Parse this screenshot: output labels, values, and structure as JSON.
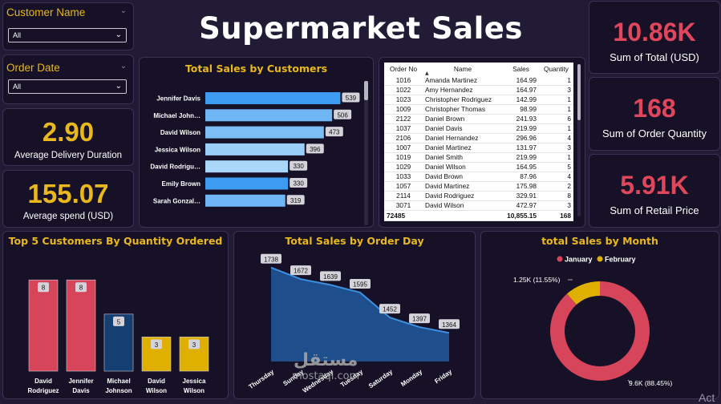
{
  "title": "Supermarket Sales",
  "slicers": {
    "customer": {
      "label": "Customer Name",
      "value": "All"
    },
    "order_date": {
      "label": "Order Date",
      "value": "All"
    }
  },
  "kpis": {
    "delivery": {
      "value": "2.90",
      "label": "Average Delivery Duration"
    },
    "spend": {
      "value": "155.07",
      "label": "Average spend (USD)"
    },
    "total": {
      "value": "10.86K",
      "label": "Sum of Total (USD)"
    },
    "quantity": {
      "value": "168",
      "label": "Sum of Order Quantity"
    },
    "retail": {
      "value": "5.91K",
      "label": "Sum of Retail Price"
    }
  },
  "table": {
    "headers": [
      "Order No",
      "Name",
      "Sales",
      "Quantity"
    ],
    "rows": [
      [
        "1016",
        "Amanda Martinez",
        "164.99",
        "1"
      ],
      [
        "1022",
        "Amy Hernandez",
        "164.97",
        "3"
      ],
      [
        "1023",
        "Christopher Rodriguez",
        "142.99",
        "1"
      ],
      [
        "1009",
        "Christopher Thomas",
        "98.99",
        "1"
      ],
      [
        "2122",
        "Daniel Brown",
        "241.93",
        "6"
      ],
      [
        "1037",
        "Daniel Davis",
        "219.99",
        "1"
      ],
      [
        "2106",
        "Daniel Hernandez",
        "296.96",
        "4"
      ],
      [
        "1007",
        "Daniel Martinez",
        "131.97",
        "3"
      ],
      [
        "1019",
        "Daniel Smith",
        "219.99",
        "1"
      ],
      [
        "1029",
        "Daniel Wilson",
        "164.95",
        "5"
      ],
      [
        "1033",
        "David Brown",
        "87.96",
        "4"
      ],
      [
        "1057",
        "David Martinez",
        "175.98",
        "2"
      ],
      [
        "2114",
        "David Rodriguez",
        "329.91",
        "8"
      ],
      [
        "3071",
        "David Wilson",
        "472.97",
        "3"
      ]
    ],
    "total": [
      "72485",
      "",
      "10,855.15",
      "168"
    ]
  },
  "watermark": {
    "arabic": "مستقل",
    "latin": "mostaql.com"
  },
  "overlay_text": "Act",
  "chart_data": [
    {
      "type": "bar",
      "orientation": "horizontal",
      "title": "Total Sales by Customers",
      "categories": [
        "Jennifer Davis",
        "Michael John…",
        "David Wilson",
        "Jessica Wilson",
        "David Rodrigu…",
        "Emily Brown",
        "Sarah Gonzal…"
      ],
      "values": [
        539,
        506,
        473,
        396,
        330,
        330,
        319
      ],
      "colors": [
        "#3d9bf0",
        "#6fb6f5",
        "#7cbef6",
        "#9acff9",
        "#a8d7fa",
        "#3d9bf0",
        "#6fb6f5"
      ],
      "xlim": [
        0,
        640
      ]
    },
    {
      "type": "bar",
      "title": "Top 5 Customers By Quantity Ordered",
      "categories": [
        "David Rodriguez",
        "Jennifer Davis",
        "Michael Johnson",
        "David Wilson",
        "Jessica Wilson"
      ],
      "category_lines": [
        [
          "David",
          "Rodriguez"
        ],
        [
          "Jennifer",
          "Davis"
        ],
        [
          "Michael",
          "Johnson"
        ],
        [
          "David",
          "Wilson"
        ],
        [
          "Jessica",
          "Wilson"
        ]
      ],
      "values": [
        8,
        8,
        5,
        3,
        3
      ],
      "colors": [
        "#d7455b",
        "#d7455b",
        "#153e73",
        "#e0b000",
        "#e0b000"
      ],
      "ylim": [
        0,
        9
      ]
    },
    {
      "type": "area",
      "title": "Total Sales by Order Day",
      "categories": [
        "Thursday",
        "Sunday",
        "Wednesday",
        "Tuesday",
        "Saturday",
        "Monday",
        "Friday"
      ],
      "values": [
        1738,
        1672,
        1639,
        1595,
        1452,
        1397,
        1364
      ],
      "ylim": [
        1200,
        1760
      ],
      "color": "#1f4e8c",
      "line_color": "#3d8fe0"
    },
    {
      "type": "pie",
      "title": "total Sales by Month",
      "labels": [
        "January",
        "February"
      ],
      "values": [
        9.6,
        1.25
      ],
      "display": [
        "9.6K (88.45%)",
        "1.25K (11.55%)"
      ],
      "colors": [
        "#d7455b",
        "#e0b000"
      ],
      "donut": true,
      "legend_position": "top"
    }
  ]
}
